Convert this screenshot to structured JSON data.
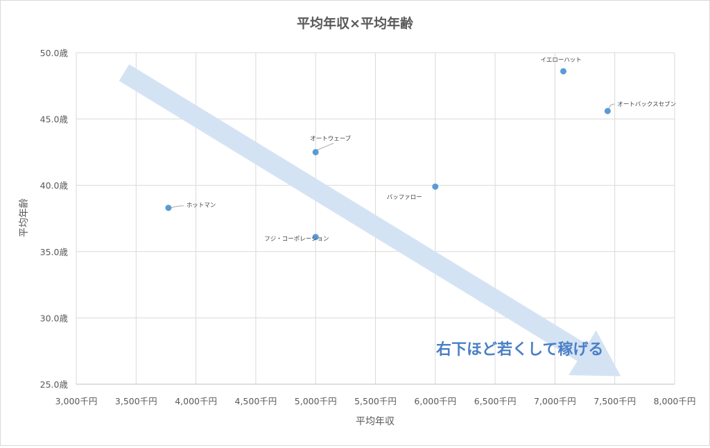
{
  "chart_data": {
    "type": "scatter",
    "title": "平均年収×平均年齢",
    "xlabel": "平均年収",
    "ylabel": "平均年齢",
    "xlim": [
      3000,
      8000
    ],
    "ylim": [
      25,
      50
    ],
    "x_ticks": [
      3000,
      3500,
      4000,
      4500,
      5000,
      5500,
      6000,
      6500,
      7000,
      7500,
      8000
    ],
    "y_ticks": [
      25,
      30,
      35,
      40,
      45,
      50
    ],
    "x_tick_labels": [
      "3,000千円",
      "3,500千円",
      "4,000千円",
      "4,500千円",
      "5,000千円",
      "5,500千円",
      "6,000千円",
      "6,500千円",
      "7,000千円",
      "7,500千円",
      "8,000千円"
    ],
    "y_tick_labels": [
      "25.0歳",
      "30.0歳",
      "35.0歳",
      "40.0歳",
      "45.0歳",
      "50.0歳"
    ],
    "grid": true,
    "point_color": "#5b9bd5",
    "points": [
      {
        "label": "ホットマン",
        "x": 3770,
        "y": 38.3
      },
      {
        "label": "フジ・コーポレーション",
        "x": 5000,
        "y": 36.1
      },
      {
        "label": "オートウェーブ",
        "x": 5000,
        "y": 42.5
      },
      {
        "label": "バッファロー",
        "x": 6000,
        "y": 39.9
      },
      {
        "label": "イエローハット",
        "x": 7070,
        "y": 48.6
      },
      {
        "label": "オートバックスセブン",
        "x": 7440,
        "y": 45.6
      }
    ],
    "annotation": {
      "text": "右下ほど若くして稼げる",
      "arrow_from": [
        3400,
        48.5
      ],
      "arrow_to": [
        7550,
        25.6
      ],
      "arrow_color": "#d4e3f4",
      "text_color": "#4a7fc5"
    }
  }
}
